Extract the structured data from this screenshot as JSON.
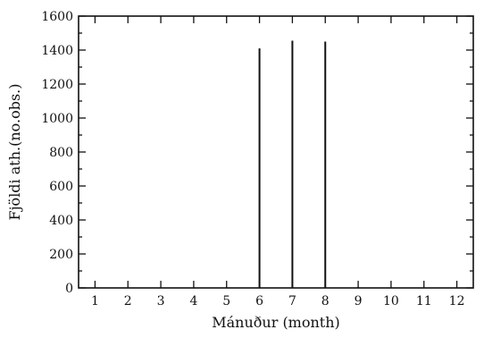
{
  "chart_data": {
    "type": "bar",
    "title": "",
    "xlabel": "Mánuður (month)",
    "ylabel": "Fjöldi ath.(no.obs.)",
    "categories": [
      "1",
      "2",
      "3",
      "4",
      "5",
      "6",
      "7",
      "8",
      "9",
      "10",
      "11",
      "12"
    ],
    "x": [
      1,
      2,
      3,
      4,
      5,
      6,
      7,
      8,
      9,
      10,
      11,
      12
    ],
    "values": [
      0,
      0,
      0,
      0,
      3,
      1410,
      1455,
      1450,
      5,
      3,
      0,
      0
    ],
    "xlim": [
      0.5,
      12.5
    ],
    "ylim": [
      0,
      1600
    ],
    "yticks": [
      0,
      200,
      400,
      600,
      800,
      1000,
      1200,
      1400,
      1600
    ],
    "y_minor_step": 100,
    "grid": false,
    "legend": "none"
  }
}
